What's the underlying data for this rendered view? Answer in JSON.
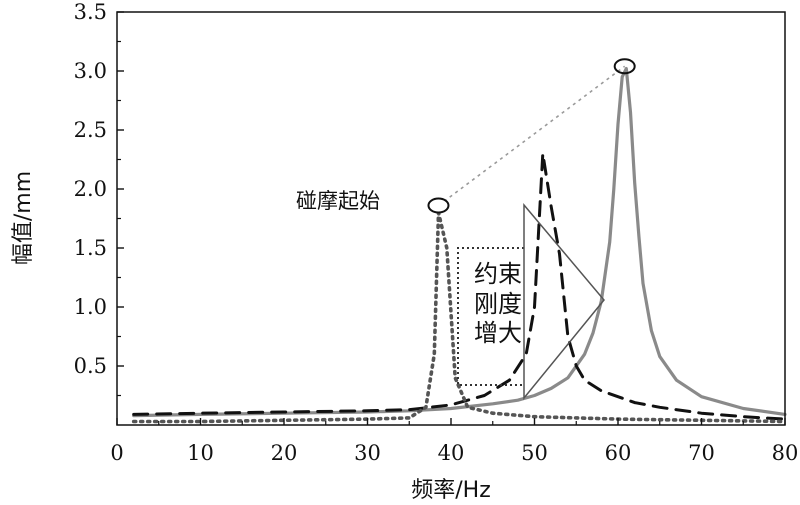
{
  "chart_data": {
    "type": "line",
    "xlabel": "频率/Hz",
    "ylabel": "幅值/mm",
    "xlim": [
      0,
      80
    ],
    "ylim": [
      0,
      3.5
    ],
    "x_ticks": [
      "0",
      "10",
      "20",
      "30",
      "40",
      "50",
      "60",
      "70",
      "80"
    ],
    "y_ticks": [
      "0.5",
      "1.0",
      "1.5",
      "2.0",
      "2.5",
      "3.0",
      "3.5"
    ],
    "grid": false,
    "legend": "none",
    "series": [
      {
        "style": "solid",
        "color": "#8a8a8a",
        "x": [
          2,
          10,
          20,
          30,
          35,
          40,
          45,
          48,
          50,
          52,
          54,
          56,
          57,
          58,
          59,
          59.5,
          60,
          60.5,
          61,
          61.5,
          62,
          62.5,
          63,
          64,
          65,
          67,
          70,
          75,
          80
        ],
        "y": [
          0.08,
          0.09,
          0.1,
          0.11,
          0.12,
          0.14,
          0.18,
          0.21,
          0.25,
          0.31,
          0.4,
          0.6,
          0.78,
          1.05,
          1.55,
          2.0,
          2.55,
          2.95,
          3.02,
          2.65,
          2.05,
          1.6,
          1.2,
          0.8,
          0.58,
          0.38,
          0.24,
          0.14,
          0.09
        ]
      },
      {
        "style": "dashed",
        "color": "#111111",
        "x": [
          2,
          10,
          20,
          30,
          35,
          40,
          44,
          47,
          49,
          50,
          51,
          52,
          53,
          54,
          55,
          56,
          58,
          60,
          62,
          65,
          70,
          75,
          80
        ],
        "y": [
          0.09,
          0.1,
          0.11,
          0.12,
          0.13,
          0.17,
          0.25,
          0.38,
          0.6,
          1.0,
          2.3,
          1.85,
          1.45,
          0.75,
          0.5,
          0.38,
          0.29,
          0.24,
          0.19,
          0.15,
          0.1,
          0.07,
          0.05
        ]
      },
      {
        "style": "dotted",
        "color": "#555555",
        "x": [
          2,
          10,
          20,
          30,
          35,
          37,
          38,
          38.5,
          39.5,
          40.5,
          42,
          45,
          50,
          55,
          60,
          70,
          80
        ],
        "y": [
          0.03,
          0.03,
          0.04,
          0.05,
          0.06,
          0.15,
          0.6,
          1.8,
          1.5,
          0.4,
          0.15,
          0.1,
          0.07,
          0.06,
          0.05,
          0.04,
          0.03
        ]
      }
    ],
    "annotations": {
      "collision_start": "碰摩起始",
      "peak_line": {
        "from": [
          38.5,
          1.86
        ],
        "to": [
          60.8,
          3.04
        ]
      },
      "arrow_text_lines": [
        "约束",
        "刚度",
        "增大"
      ]
    }
  }
}
